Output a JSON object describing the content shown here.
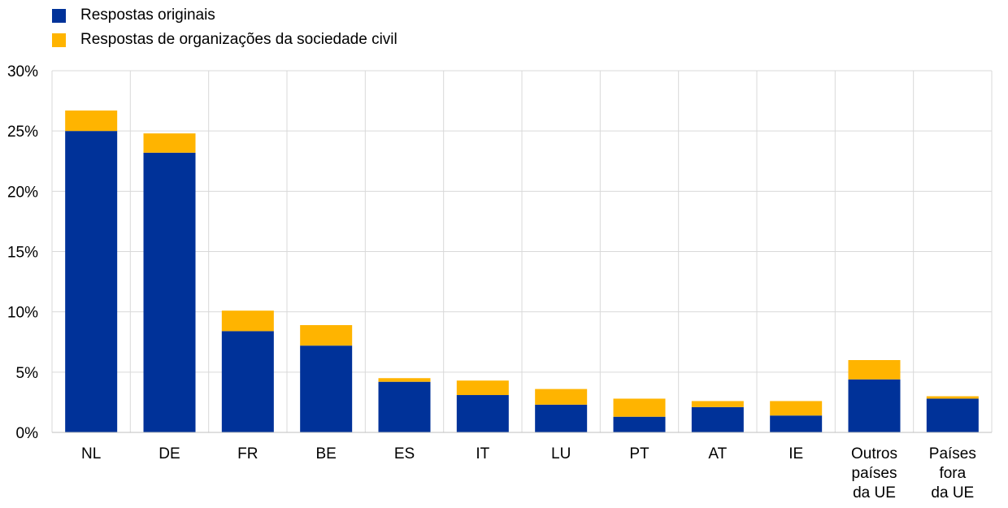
{
  "chart_data": {
    "type": "bar",
    "stacked": true,
    "categories": [
      [
        "NL"
      ],
      [
        "DE"
      ],
      [
        "FR"
      ],
      [
        "BE"
      ],
      [
        "ES"
      ],
      [
        "IT"
      ],
      [
        "LU"
      ],
      [
        "PT"
      ],
      [
        "AT"
      ],
      [
        "IE"
      ],
      [
        "Outros",
        "países",
        "da UE"
      ],
      [
        "Países",
        "fora",
        "da UE"
      ]
    ],
    "series": [
      {
        "name": "Respostas originais",
        "color": "#003299",
        "values": [
          25.0,
          23.2,
          8.4,
          7.2,
          4.2,
          3.1,
          2.3,
          1.3,
          2.1,
          1.4,
          4.4,
          2.8
        ]
      },
      {
        "name": "Respostas de organizações da sociedade civil",
        "color": "#ffb400",
        "values": [
          1.7,
          1.6,
          1.7,
          1.7,
          0.3,
          1.2,
          1.3,
          1.5,
          0.5,
          1.2,
          1.6,
          0.2
        ]
      }
    ],
    "ylim": [
      0,
      30
    ],
    "yticks": [
      0,
      5,
      10,
      15,
      20,
      25,
      30
    ],
    "ytick_labels": [
      "0%",
      "5%",
      "10%",
      "15%",
      "20%",
      "25%",
      "30%"
    ],
    "grid": true,
    "legend_position": "top-left"
  }
}
